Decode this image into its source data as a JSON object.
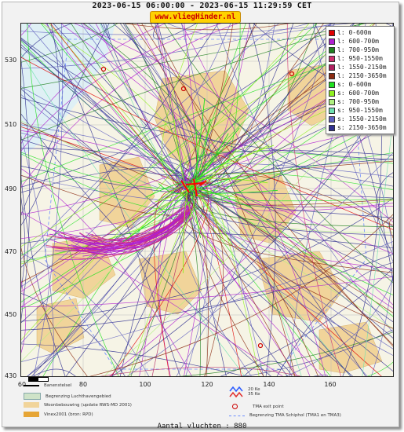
{
  "header": {
    "title": "2023-06-15 06:00:00 - 2023-06-15 11:29:59 CET",
    "site": "www.vliegHinder.nl"
  },
  "axes": {
    "y_ticks": [
      "530",
      "510",
      "490",
      "470",
      "450",
      "430"
    ],
    "x_ticks": [
      "60",
      "80",
      "100",
      "120",
      "140",
      "160"
    ]
  },
  "legend": {
    "items": [
      {
        "label": "l: 0-600m",
        "color": "#e00000"
      },
      {
        "label": "l: 600-700m",
        "color": "#b020d0"
      },
      {
        "label": "l: 700-950m",
        "color": "#208020"
      },
      {
        "label": "l: 950-1550m",
        "color": "#d03070"
      },
      {
        "label": "l: 1550-2150m",
        "color": "#b02060"
      },
      {
        "label": "l: 2150-3650m",
        "color": "#8b2a10"
      },
      {
        "label": "s: 0-600m",
        "color": "#20e020"
      },
      {
        "label": "s: 600-700m",
        "color": "#90f020"
      },
      {
        "label": "s: 700-950m",
        "color": "#b0f080"
      },
      {
        "label": "s: 950-1550m",
        "color": "#70e0b0"
      },
      {
        "label": "s: 1550-2150m",
        "color": "#6060c0"
      },
      {
        "label": "s: 2150-3650m",
        "color": "#303090"
      }
    ]
  },
  "bottom_legend": {
    "runways": "Banenstelsel",
    "zone": "Begrenzing Luchthavengebied",
    "housing": "Woonbebouwing (update RWS-MD 2001)",
    "vinex": "Vinex2001 (bron: RPD)",
    "noise_a": "20 Ke",
    "noise_b": "35 Ke",
    "tma_exit": "TMA exit point",
    "tma_boundary": "Begrenzing TMA Schiphol  (TMA1 en TMA3)"
  },
  "footer": {
    "count": "Aantal vluchten : 880"
  }
}
